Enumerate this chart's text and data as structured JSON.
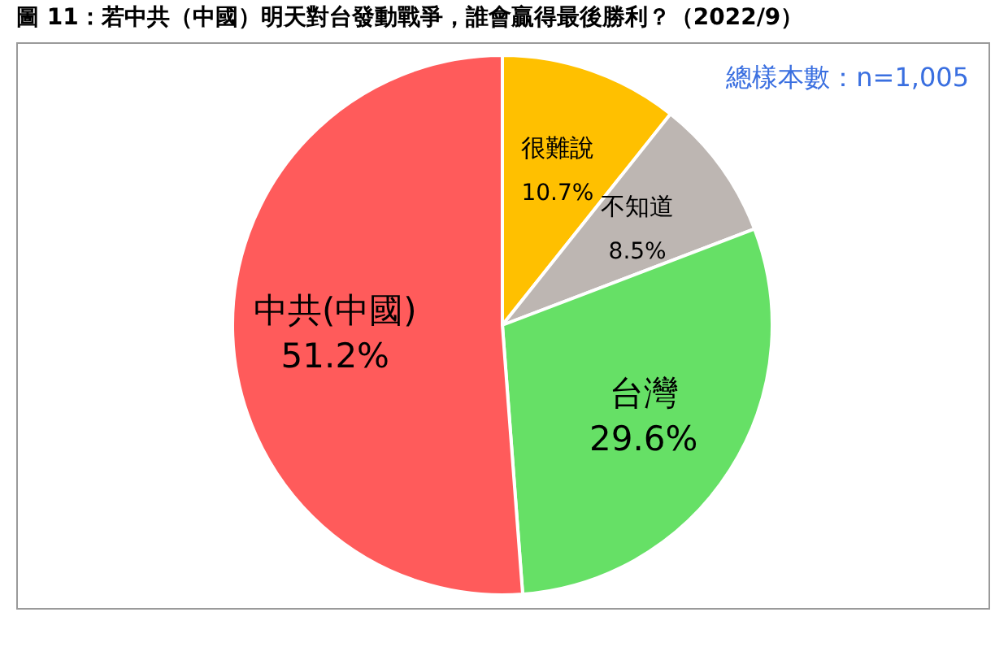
{
  "chart_data": {
    "type": "pie",
    "title": "圖 11：若中共（中國）明天對台發動戰爭，誰會贏得最後勝利？（2022/9）",
    "categories": [
      "很難說",
      "不知道",
      "台灣",
      "中共(中國)"
    ],
    "values": [
      10.7,
      8.5,
      29.6,
      51.2
    ],
    "value_labels": [
      "10.7%",
      "8.5%",
      "29.6%",
      "51.2%"
    ],
    "colors": [
      "#ffc000",
      "#bdb6b2",
      "#66e066",
      "#ff5b5b"
    ],
    "annotations": [
      "總樣本數：n=1,005"
    ],
    "legend": false
  }
}
